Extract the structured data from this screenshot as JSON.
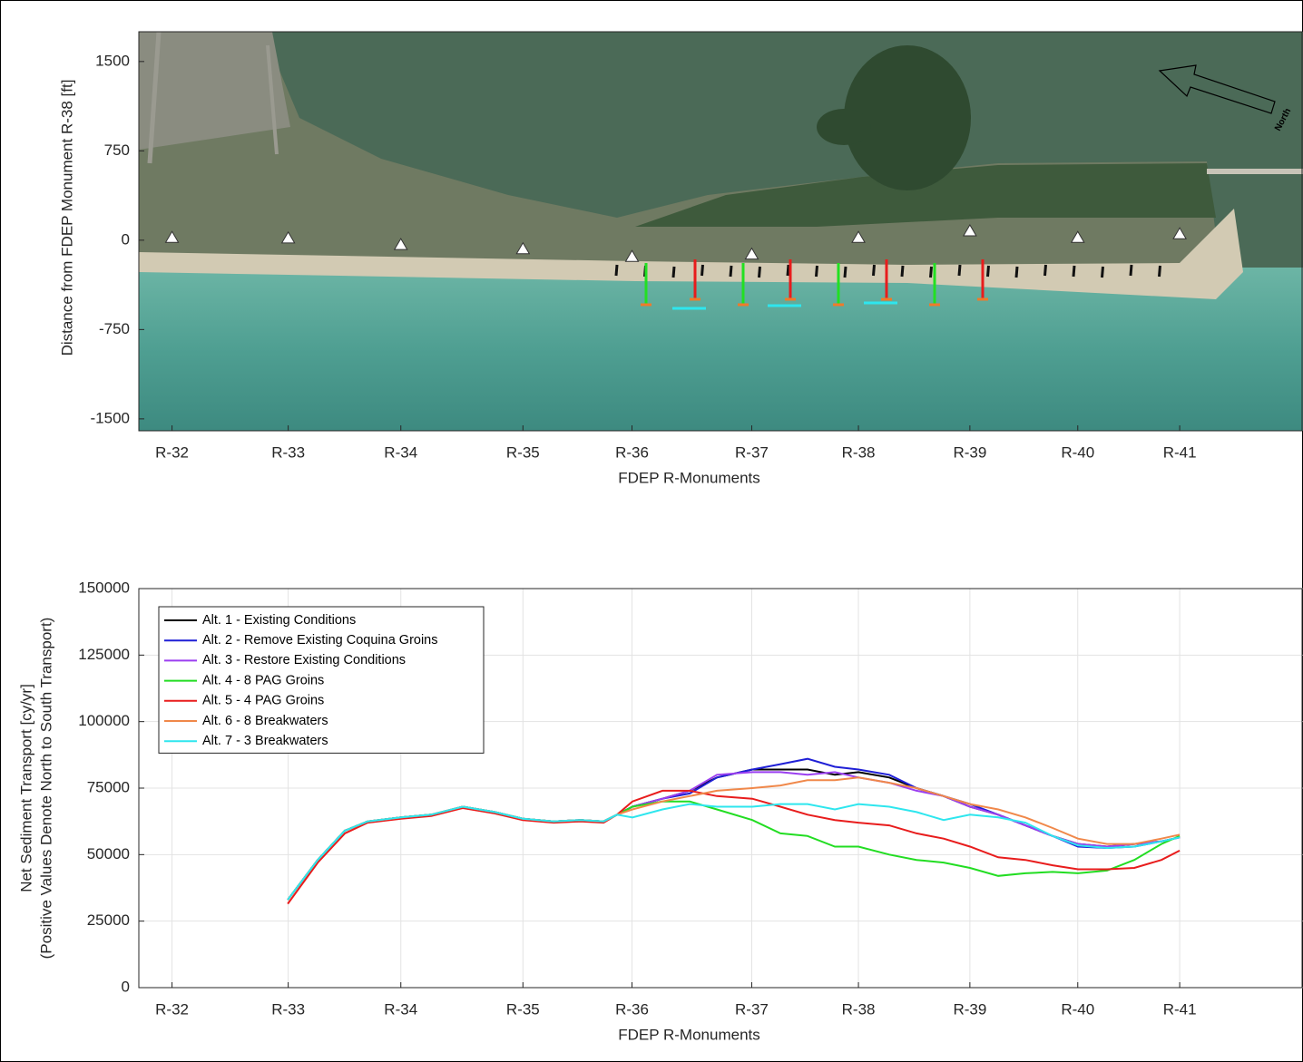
{
  "chart_data": [
    {
      "type": "scatter",
      "ylabel": "Distance from FDEP Monument R-38 [ft]",
      "xlabel": "FDEP R-Monuments",
      "north_label": "North",
      "xlim": [
        -6070,
        3750
      ],
      "ylim": [
        -1600,
        1750
      ],
      "yticks": [
        -1500,
        -750,
        0,
        750,
        1500
      ],
      "xticks": [
        {
          "value": -5790,
          "label": "R-32"
        },
        {
          "value": -4810,
          "label": "R-33"
        },
        {
          "value": -3860,
          "label": "R-34"
        },
        {
          "value": -2830,
          "label": "R-35"
        },
        {
          "value": -1910,
          "label": "R-36"
        },
        {
          "value": -900,
          "label": "R-37"
        },
        {
          "value": 0,
          "label": "R-38"
        },
        {
          "value": 940,
          "label": "R-39"
        },
        {
          "value": 1850,
          "label": "R-40"
        },
        {
          "value": 2710,
          "label": "R-41"
        }
      ],
      "grid": false,
      "marker_color": "#ffffff",
      "x": [
        -5790,
        -4810,
        -3860,
        -2830,
        -1910,
        -900,
        0,
        940,
        1850,
        2710
      ],
      "values": [
        20,
        15,
        -40,
        -75,
        -140,
        -120,
        20,
        75,
        20,
        50
      ]
    },
    {
      "type": "line",
      "ylabel": [
        "Net Sediment Transport [cy/yr]",
        "(Positive Values Denote North to South Transport)"
      ],
      "xlabel": "FDEP R-Monuments",
      "xlim": [
        -6070,
        3750
      ],
      "ylim": [
        0,
        150000
      ],
      "yticks": [
        0,
        25000,
        50000,
        75000,
        100000,
        125000,
        150000
      ],
      "xticks": [
        {
          "value": -5790,
          "label": "R-32"
        },
        {
          "value": -4810,
          "label": "R-33"
        },
        {
          "value": -3860,
          "label": "R-34"
        },
        {
          "value": -2830,
          "label": "R-35"
        },
        {
          "value": -1910,
          "label": "R-36"
        },
        {
          "value": -900,
          "label": "R-37"
        },
        {
          "value": 0,
          "label": "R-38"
        },
        {
          "value": 940,
          "label": "R-39"
        },
        {
          "value": 1850,
          "label": "R-40"
        },
        {
          "value": 2710,
          "label": "R-41"
        }
      ],
      "grid": true,
      "legend": "upper left",
      "x": [
        -4814,
        -4561,
        -4332,
        -4140,
        -3857,
        -3604,
        -3337,
        -3069,
        -2832,
        -2571,
        -2342,
        -2150,
        -2036,
        -1906,
        -1653,
        -1423,
        -1194,
        -895,
        -658,
        -429,
        -199,
        0,
        260,
        490,
        719,
        941,
        1179,
        1408,
        1638,
        1852,
        2097,
        2327,
        2556,
        2710
      ],
      "series": [
        {
          "name": "Alt. 1 - Existing Conditions",
          "color": "#000000",
          "values": [
            33000,
            48000,
            59000,
            62500,
            64000,
            65000,
            68000,
            66000,
            63500,
            62500,
            63000,
            62500,
            65000,
            68000,
            71000,
            74000,
            79000,
            82000,
            82000,
            82000,
            80000,
            81000,
            79000,
            75000,
            72000,
            68000,
            65000,
            61000,
            57000,
            54000,
            53000,
            54000,
            55000,
            56500
          ]
        },
        {
          "name": "Alt. 2 - Remove Existing Coquina Groins",
          "color": "#1f1fd6",
          "values": [
            33000,
            48000,
            59000,
            62500,
            64000,
            65000,
            68000,
            66000,
            63500,
            62500,
            63000,
            62500,
            65000,
            68000,
            71000,
            73000,
            79000,
            82000,
            84000,
            86000,
            83000,
            82000,
            80000,
            75000,
            72000,
            69000,
            65000,
            61000,
            57000,
            53000,
            52500,
            53000,
            55000,
            56500
          ]
        },
        {
          "name": "Alt. 3 - Restore Existing Conditions",
          "color": "#9b3ff0",
          "values": [
            33000,
            48000,
            59000,
            62500,
            64000,
            65000,
            68000,
            66000,
            63500,
            62500,
            63000,
            62500,
            65000,
            68000,
            71000,
            74000,
            80000,
            81000,
            81000,
            80000,
            81000,
            79000,
            77000,
            74000,
            72000,
            68000,
            65000,
            61000,
            57000,
            54000,
            53000,
            54000,
            55000,
            56500
          ]
        },
        {
          "name": "Alt. 4 - 8 PAG Groins",
          "color": "#22dd22",
          "values": [
            33000,
            48000,
            59000,
            62500,
            64000,
            65000,
            68000,
            66000,
            63500,
            62500,
            63000,
            62500,
            65000,
            68000,
            70000,
            70000,
            67000,
            63000,
            58000,
            57000,
            53000,
            53000,
            50000,
            48000,
            47000,
            45000,
            42000,
            43000,
            43500,
            43000,
            44000,
            48000,
            54000,
            57000
          ]
        },
        {
          "name": "Alt. 5 - 4 PAG Groins",
          "color": "#e81c1c",
          "values": [
            31500,
            47000,
            58000,
            62000,
            63500,
            64500,
            67500,
            65500,
            63000,
            62000,
            62500,
            62000,
            65000,
            70000,
            74000,
            74000,
            72000,
            71000,
            68000,
            65000,
            63000,
            62000,
            61000,
            58000,
            56000,
            53000,
            49000,
            48000,
            46000,
            44500,
            44500,
            45000,
            48000,
            51500
          ]
        },
        {
          "name": "Alt. 6 - 8 Breakwaters",
          "color": "#f0884a",
          "values": [
            33000,
            48000,
            59000,
            62500,
            64000,
            65000,
            68000,
            66000,
            63500,
            62500,
            63000,
            62500,
            65000,
            67000,
            70000,
            72000,
            74000,
            75000,
            76000,
            78000,
            78000,
            79000,
            77000,
            75000,
            72000,
            69000,
            67000,
            64000,
            60000,
            56000,
            54000,
            54000,
            56000,
            57500
          ]
        },
        {
          "name": "Alt. 7 - 3 Breakwaters",
          "color": "#2ee6ee",
          "values": [
            33000,
            48000,
            59000,
            62500,
            64000,
            65000,
            68000,
            66000,
            63500,
            62500,
            63000,
            62500,
            65000,
            64000,
            67000,
            69000,
            68000,
            68000,
            69000,
            69000,
            67000,
            69000,
            68000,
            66000,
            63000,
            65000,
            64000,
            62000,
            57000,
            53500,
            52500,
            53000,
            55000,
            56500
          ]
        }
      ]
    }
  ]
}
